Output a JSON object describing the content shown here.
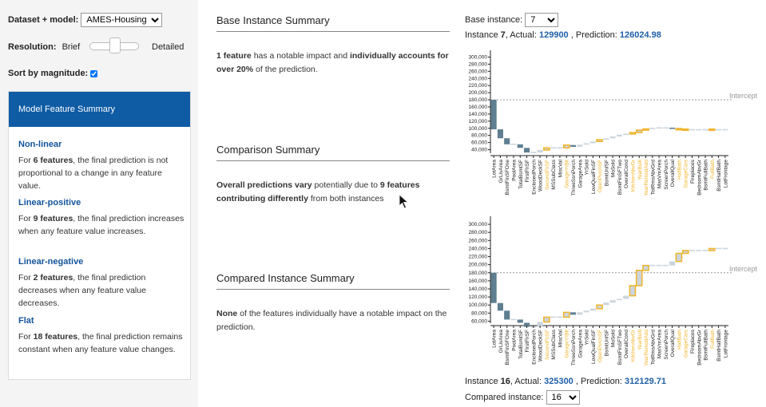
{
  "left": {
    "dataset_label": "Dataset + model:",
    "dataset_value": "AMES-Housing",
    "resolution_label": "Resolution:",
    "resolution_brief": "Brief",
    "resolution_detailed": "Detailed",
    "sort_label": "Sort by magnitude:",
    "card_title": "Model Feature Summary",
    "categories": [
      {
        "heading": "Non-linear",
        "pre": "For ",
        "bold": "6 features",
        "post": ", the final prediction is not proportional to a change in any feature value."
      },
      {
        "heading": "Linear-positive",
        "pre": "For ",
        "bold": "9 features",
        "post": ", the final prediction increases when any feature value increases."
      },
      {
        "heading": "Linear-negative",
        "pre": "For ",
        "bold": "2 features",
        "post": ", the final prediction decreases when any feature value decreases."
      },
      {
        "heading": "Flat",
        "pre": "For ",
        "bold": "18 features",
        "post": ", the final prediction remains constant when any feature value changes."
      }
    ]
  },
  "middle": {
    "base_title": "Base Instance Summary",
    "base_b1": "1 feature",
    "base_t1": " has a notable impact and ",
    "base_b2": "individually accounts for over 20%",
    "base_t2": " of the prediction.",
    "comp_title": "Comparison Summary",
    "comp_b1": "Overall predictions vary",
    "comp_t1": " potentially due to ",
    "comp_b2": "9 features contributing differently",
    "comp_t2": " from both instances",
    "compared_title": "Compared Instance Summary",
    "compared_b1": "None",
    "compared_t1": " of the features individually have a notable impact on the prediction."
  },
  "right": {
    "base_instance_label": "Base instance:",
    "base_instance_value": "7",
    "base_line_a": "Instance ",
    "base_id": "7",
    "base_line_b": ", Actual: ",
    "base_actual": "129900",
    "base_line_c": " , Prediction: ",
    "base_pred": "126024.98",
    "cmp_line_a": "Instance ",
    "cmp_id": "16",
    "cmp_line_b": ", Actual: ",
    "cmp_actual": "325300",
    "cmp_line_c": " , Prediction: ",
    "cmp_pred": "312129.71",
    "compared_instance_label": "Compared instance:",
    "compared_instance_value": "16"
  },
  "colors": {
    "brand": "#0f5ca5",
    "negative": "#5f7f91",
    "positive": "#ccd5dd",
    "highlight": "#f0b429",
    "value": "#1f5fa8"
  },
  "chart_data": [
    {
      "type": "bar",
      "subtype": "waterfall",
      "intercept_label": "Intercept",
      "intercept": 180000,
      "ylim": [
        30000,
        310000
      ],
      "yticks": [
        40000,
        60000,
        80000,
        100000,
        120000,
        140000,
        160000,
        180000,
        200000,
        220000,
        240000,
        260000,
        280000,
        300000
      ],
      "ytick_labels": [
        "40,000",
        "60,000",
        "80,000",
        "100,000",
        "120,000",
        "140,000",
        "160,000",
        "180,000",
        "200,000",
        "220,000",
        "240,000",
        "260,000",
        "280,000",
        "300,000"
      ],
      "categories": [
        "LotArea",
        "GrLivArea",
        "BsmtFinSFOne",
        "PoolArea",
        "TotalBsmtSF",
        "FirstFlrSF",
        "EnclosedPorch",
        "WoodDeckSF",
        "SecondFlrSF",
        "MSSubClass",
        "MiscVal",
        "GarageYrBlt",
        "ThreeSsnPorch",
        "GarageArea",
        "YrSold",
        "LowQualFinSF",
        "OpenPorchSF",
        "BsmtUnfSF",
        "MoSold",
        "BsmtFinSFTwo",
        "OverallCond",
        "KitchenAbvGr",
        "YearBuilt",
        "YearRemodAdd",
        "TotRmsAbvGrd",
        "MasVnrArea",
        "ScreenPorch",
        "OverallQual",
        "HalfBath",
        "GarageCars",
        "Fireplaces",
        "BedroomAbvGr",
        "BsmtFullBath",
        "FullBath",
        "BsmtHalfBath",
        "LotFrontage"
      ],
      "highlighted": [
        "SecondFlrSF",
        "GarageYrBlt",
        "OpenPorchSF",
        "KitchenAbvGr",
        "YearBuilt",
        "YearRemodAdd",
        "HalfBath",
        "GarageCars",
        "FullBath"
      ],
      "values": [
        -83000,
        -25000,
        -17000,
        0,
        -10000,
        -13000,
        0,
        7000,
        6000,
        0,
        0,
        8000,
        -5000,
        6000,
        4000,
        5000,
        5000,
        4000,
        5000,
        5000,
        2000,
        4000,
        7000,
        3000,
        3000,
        0,
        0,
        -2000,
        -3000,
        0,
        0,
        0,
        0,
        0,
        0,
        0
      ]
    },
    {
      "type": "bar",
      "subtype": "waterfall",
      "intercept_label": "Intercept",
      "intercept": 180000,
      "ylim": [
        55000,
        312000
      ],
      "yticks": [
        60000,
        80000,
        100000,
        120000,
        140000,
        160000,
        180000,
        200000,
        220000,
        240000,
        260000,
        280000,
        300000
      ],
      "ytick_labels": [
        "60,000",
        "80,000",
        "100,000",
        "120,000",
        "140,000",
        "160,000",
        "180,000",
        "200,000",
        "220,000",
        "240,000",
        "260,000",
        "280,000",
        "300,000"
      ],
      "categories": [
        "LotArea",
        "GrLivArea",
        "BsmtFinSFOne",
        "PoolArea",
        "TotalBsmtSF",
        "FirstFlrSF",
        "EnclosedPorch",
        "WoodDeckSF",
        "SecondFlrSF",
        "MSSubClass",
        "MiscVal",
        "GarageYrBlt",
        "ThreeSsnPorch",
        "GarageArea",
        "YrSold",
        "LowQualFinSF",
        "OpenPorchSF",
        "BsmtUnfSF",
        "MoSold",
        "BsmtFinSFTwo",
        "OverallCond",
        "KitchenAbvGr",
        "YearBuilt",
        "YearRemodAdd",
        "TotRmsAbvGrd",
        "MasVnrArea",
        "ScreenPorch",
        "OverallQual",
        "HalfBath",
        "GarageCars",
        "Fireplaces",
        "BedroomAbvGr",
        "BsmtFullBath",
        "FullBath",
        "BsmtHalfBath",
        "LotFrontage"
      ],
      "highlighted": [
        "SecondFlrSF",
        "GarageYrBlt",
        "OpenPorchSF",
        "KitchenAbvGr",
        "YearBuilt",
        "YearRemodAdd",
        "HalfBath",
        "GarageCars",
        "FullBath"
      ],
      "values": [
        -75000,
        -19000,
        -22000,
        0,
        -8000,
        -10000,
        0,
        12000,
        12000,
        0,
        0,
        12000,
        -6000,
        6000,
        4000,
        5000,
        9000,
        6000,
        6000,
        3000,
        8000,
        25000,
        38000,
        12000,
        0,
        0,
        0,
        10000,
        20000,
        7000,
        0,
        0,
        0,
        5000,
        0,
        0
      ]
    }
  ]
}
